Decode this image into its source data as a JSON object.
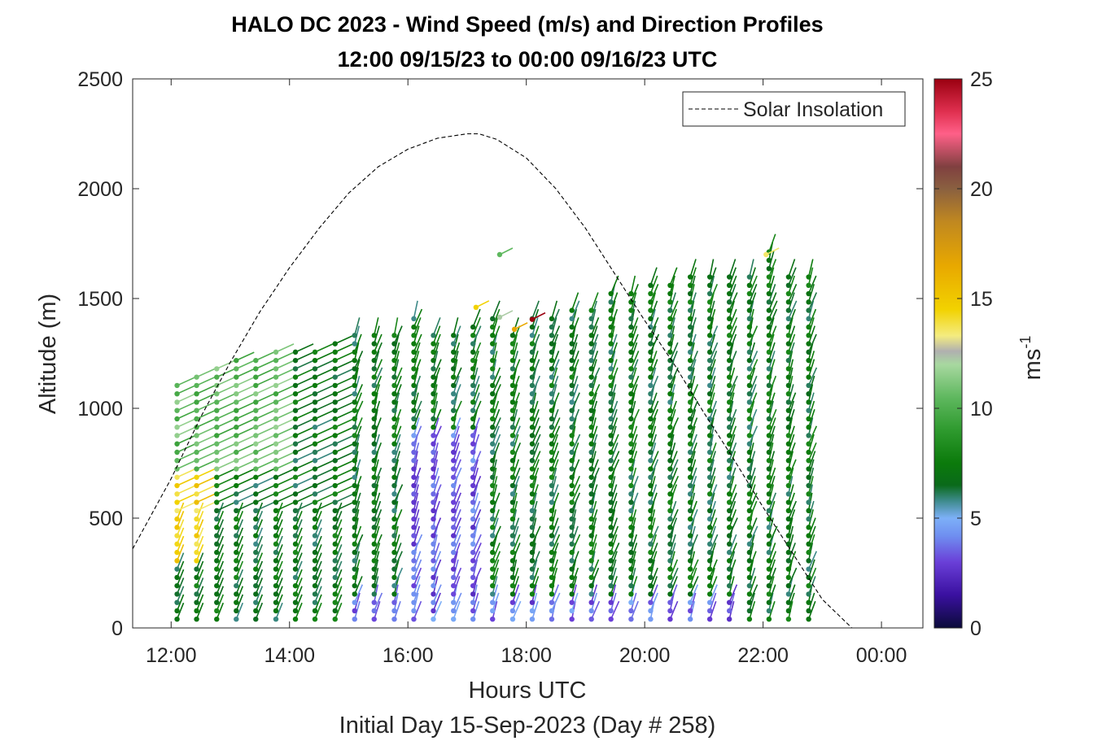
{
  "chart_data": {
    "type": "scatter",
    "title": "HALO DC 2023 - Wind Speed (m/s) and Direction Profiles",
    "subtitle": "12:00 09/15/23 to 00:00 09/16/23  UTC",
    "xlabel": "Hours UTC",
    "xlabel2": "Initial Day 15-Sep-2023 (Day # 258)",
    "ylabel": "Altitude (m)",
    "xlim": [
      11.35,
      24.7
    ],
    "ylim": [
      0,
      2500
    ],
    "xticks": [
      12,
      14,
      16,
      18,
      20,
      22,
      24
    ],
    "xtick_labels": [
      "12:00",
      "14:00",
      "16:00",
      "18:00",
      "20:00",
      "22:00",
      "00:00"
    ],
    "yticks": [
      0,
      500,
      1000,
      1500,
      2000,
      2500
    ],
    "ytick_labels": [
      "0",
      "500",
      "1000",
      "1500",
      "2000",
      "2500"
    ],
    "grid": false,
    "legend": {
      "position": "top-right",
      "entries": [
        "Solar Insolation"
      ]
    },
    "colorbar": {
      "label": "ms",
      "label_exponent": "-1",
      "range": [
        0,
        25
      ],
      "ticks": [
        0,
        5,
        10,
        15,
        20,
        25
      ],
      "tick_labels": [
        "0",
        "5",
        "10",
        "15",
        "20",
        "25"
      ],
      "stops": [
        [
          0,
          "#0b0b3a"
        ],
        [
          1.5,
          "#3a10a0"
        ],
        [
          3,
          "#6a3fd8"
        ],
        [
          4.2,
          "#6f8ff0"
        ],
        [
          5,
          "#7db0f8"
        ],
        [
          5.8,
          "#3d8a8a"
        ],
        [
          6.5,
          "#0a6a1a"
        ],
        [
          7.5,
          "#0b7a0b"
        ],
        [
          9,
          "#2e9a2e"
        ],
        [
          10.5,
          "#5fb85f"
        ],
        [
          12,
          "#a8d8a0"
        ],
        [
          12.6,
          "#b0b0b0"
        ],
        [
          13.3,
          "#f4ec80"
        ],
        [
          14.5,
          "#f2d200"
        ],
        [
          16.5,
          "#e8a800"
        ],
        [
          18.5,
          "#c08820"
        ],
        [
          20,
          "#8a6040"
        ],
        [
          21,
          "#804040"
        ],
        [
          22.5,
          "#ff6088"
        ],
        [
          23.5,
          "#e03050"
        ],
        [
          25,
          "#9a0010"
        ]
      ]
    },
    "series": [
      {
        "name": "Solar Insolation",
        "type": "line",
        "style": "dashed",
        "color": "#000000",
        "x": [
          11.35,
          12.0,
          12.5,
          13.0,
          13.5,
          14.0,
          14.5,
          15.0,
          15.5,
          16.0,
          16.5,
          17.0,
          17.2,
          17.5,
          18.0,
          18.5,
          19.0,
          19.5,
          20.0,
          20.5,
          21.0,
          21.5,
          22.0,
          22.5,
          23.0,
          23.5,
          24.0,
          24.7
        ],
        "y": [
          360,
          680,
          960,
          1210,
          1440,
          1640,
          1820,
          1980,
          2100,
          2180,
          2230,
          2250,
          2250,
          2225,
          2140,
          2000,
          1820,
          1610,
          1400,
          1200,
          980,
          770,
          550,
          340,
          130,
          0,
          0,
          0
        ]
      },
      {
        "name": "Wind barbs",
        "type": "scatter",
        "profile_times": [
          12.1,
          12.43,
          12.77,
          13.1,
          13.43,
          13.77,
          14.1,
          14.43,
          14.77,
          15.1,
          15.43,
          15.77,
          16.1,
          16.43,
          16.77,
          17.1,
          17.43,
          17.77,
          18.1,
          18.43,
          18.77,
          19.1,
          19.43,
          19.77,
          20.1,
          20.43,
          20.77,
          21.1,
          21.43,
          21.77,
          22.1,
          22.43,
          22.77
        ],
        "profile_tops": [
          1125,
          1150,
          1200,
          1225,
          1250,
          1260,
          1270,
          1290,
          1300,
          1360,
          1340,
          1360,
          1440,
          1365,
          1355,
          1405,
          1410,
          1360,
          1410,
          1420,
          1450,
          1470,
          1540,
          1545,
          1575,
          1580,
          1600,
          1600,
          1615,
          1625,
          1740,
          1610,
          1620
        ],
        "speed_bands": [
          {
            "t_from": 12.0,
            "t_to": 12.6,
            "alt_from": 300,
            "alt_to": 720,
            "speed": 14.5
          },
          {
            "t_from": 12.0,
            "t_to": 13.8,
            "alt_from": 700,
            "alt_to": 1300,
            "speed": 10.5
          },
          {
            "t_from": 14.0,
            "t_to": 23.0,
            "alt_from": 0,
            "alt_to": 1700,
            "speed": 7.0
          },
          {
            "t_from": 16.0,
            "t_to": 17.3,
            "alt_from": 0,
            "alt_to": 900,
            "speed": 3.5
          }
        ],
        "isolated_points": [
          {
            "x": 17.55,
            "y": 1700,
            "speed": 10.5
          },
          {
            "x": 17.15,
            "y": 1460,
            "speed": 14.5
          },
          {
            "x": 17.55,
            "y": 1415,
            "speed": 12.2
          },
          {
            "x": 17.8,
            "y": 1360,
            "speed": 16.5
          },
          {
            "x": 18.1,
            "y": 1405,
            "speed": 25
          },
          {
            "x": 22.05,
            "y": 1700,
            "speed": 13.5
          }
        ]
      }
    ]
  }
}
